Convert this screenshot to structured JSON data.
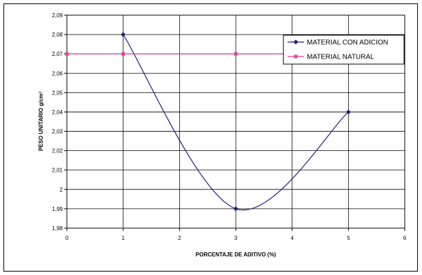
{
  "chart_data": {
    "type": "line",
    "title": "",
    "xlabel": "PORCENTAJE DE ADITIVO (%)",
    "ylabel": "PESO UNITARIO g/cm³",
    "xlim": [
      0,
      6
    ],
    "ylim": [
      1.98,
      2.09
    ],
    "x_ticks": [
      0,
      1,
      2,
      3,
      4,
      5,
      6
    ],
    "y_ticks": [
      "1,98",
      "1,99",
      "2",
      "2,01",
      "2,02",
      "2,03",
      "2,04",
      "2,05",
      "2,06",
      "2,07",
      "2,08",
      "2,09"
    ],
    "grid": true,
    "legend_position": "top-right",
    "series": [
      {
        "name": "MATERIAL CON ADICION",
        "color": "#1f1f7a",
        "marker": "diamond",
        "smooth": true,
        "x": [
          1,
          3,
          5
        ],
        "y": [
          2.08,
          1.99,
          2.04
        ]
      },
      {
        "name": "MATERIAL NATURAL",
        "color": "#e0409a",
        "marker": "square",
        "smooth": false,
        "x": [
          0,
          1,
          3,
          5
        ],
        "y": [
          2.07,
          2.07,
          2.07,
          2.07
        ]
      }
    ]
  }
}
